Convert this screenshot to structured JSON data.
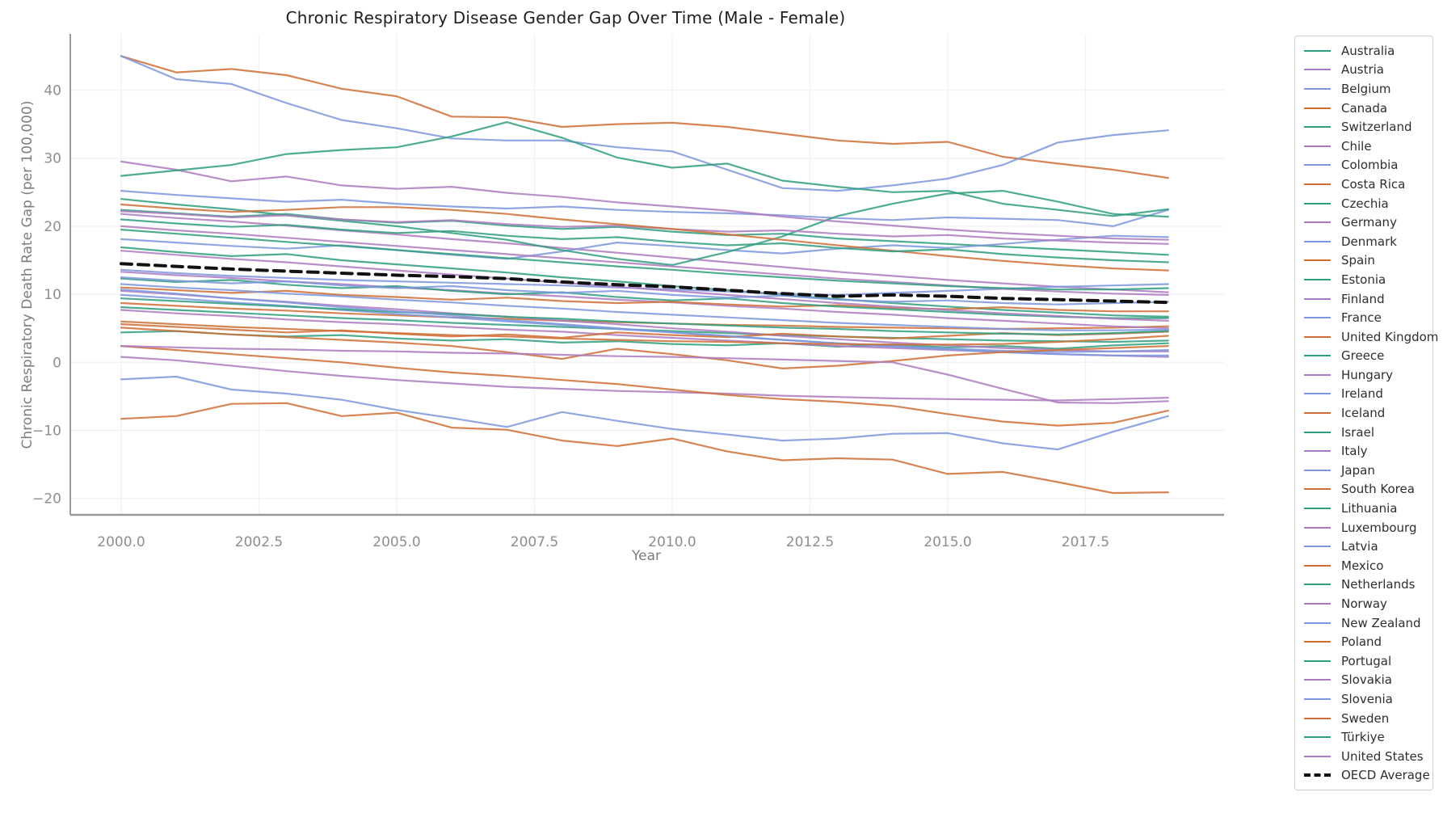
{
  "title": "Chronic Respiratory Disease Gender Gap Over Time (Male - Female)",
  "chart_data": {
    "type": "line",
    "title": "Chronic Respiratory Disease Gender Gap Over Time (Male - Female)",
    "xlabel": "Year",
    "ylabel": "Chronic Respiratory Death Rate Gap (per 100,000)",
    "x": [
      2000,
      2001,
      2002,
      2003,
      2004,
      2005,
      2006,
      2007,
      2008,
      2009,
      2010,
      2011,
      2012,
      2013,
      2014,
      2015,
      2016,
      2017,
      2018,
      2019
    ],
    "x_tick_labels": [
      "2000.0",
      "2002.5",
      "2005.0",
      "2007.5",
      "2010.0",
      "2012.5",
      "2015.0",
      "2017.5"
    ],
    "x_tick_years": [
      2000,
      2002.5,
      2005,
      2007.5,
      2010,
      2012.5,
      2015,
      2017.5
    ],
    "y_ticks": [
      -20,
      -10,
      0,
      10,
      20,
      30,
      40
    ],
    "ylim": [
      -22.4,
      48.2
    ],
    "grid": true,
    "legend_position": "right-outside",
    "palette": {
      "teal": "#2f9d7f",
      "purple": "#ad7ac0",
      "blue": "#7b97dd",
      "orange": "#cf6e35",
      "black": "#111111"
    },
    "series": [
      {
        "name": "Australia",
        "color": "teal",
        "values": [
          4.4,
          4.6,
          4.1,
          3.8,
          4.0,
          3.5,
          3.2,
          3.4,
          2.9,
          3.1,
          2.7,
          2.5,
          2.8,
          2.3,
          2.6,
          2.2,
          2.4,
          2.0,
          2.5,
          2.8
        ]
      },
      {
        "name": "Austria",
        "color": "purple",
        "values": [
          7.7,
          7.2,
          6.8,
          6.3,
          5.9,
          5.6,
          5.2,
          4.8,
          4.5,
          4.0,
          3.6,
          3.2,
          2.8,
          2.4,
          2.1,
          1.8,
          1.5,
          1.2,
          1.0,
          0.8
        ]
      },
      {
        "name": "Belgium",
        "color": "blue",
        "values": [
          25.2,
          24.6,
          24.1,
          23.6,
          23.9,
          23.3,
          22.9,
          22.6,
          22.9,
          22.4,
          22.1,
          21.9,
          21.6,
          21.2,
          20.9,
          21.3,
          21.1,
          20.9,
          20.0,
          22.4
        ]
      },
      {
        "name": "Canada",
        "color": "orange",
        "values": [
          8.7,
          8.3,
          7.9,
          7.6,
          7.2,
          6.9,
          6.6,
          6.4,
          6.1,
          5.9,
          5.7,
          5.5,
          5.4,
          5.2,
          5.1,
          5.0,
          4.9,
          5.0,
          5.1,
          5.3
        ]
      },
      {
        "name": "Switzerland",
        "color": "teal",
        "values": [
          8.1,
          7.7,
          7.3,
          6.9,
          6.5,
          6.2,
          5.8,
          5.5,
          5.2,
          4.9,
          4.6,
          4.3,
          4.0,
          3.8,
          3.6,
          3.4,
          3.2,
          3.1,
          3.0,
          3.2
        ]
      },
      {
        "name": "Chile",
        "color": "purple",
        "values": [
          10.5,
          10.0,
          9.4,
          8.9,
          8.3,
          7.8,
          7.2,
          6.7,
          6.1,
          5.6,
          5.0,
          4.5,
          3.9,
          3.4,
          2.9,
          2.5,
          2.1,
          1.8,
          1.6,
          1.6
        ]
      },
      {
        "name": "Colombia",
        "color": "blue",
        "values": [
          9.9,
          9.4,
          8.8,
          8.3,
          7.7,
          7.1,
          6.6,
          6.0,
          5.5,
          4.9,
          4.4,
          3.8,
          3.3,
          2.8,
          2.3,
          1.9,
          1.5,
          1.2,
          1.0,
          1.0
        ]
      },
      {
        "name": "Costa Rica",
        "color": "orange",
        "values": [
          5.6,
          5.2,
          4.8,
          4.4,
          4.7,
          4.2,
          3.8,
          4.1,
          3.6,
          4.4,
          4.0,
          3.7,
          4.2,
          3.8,
          3.5,
          3.9,
          4.3,
          4.0,
          4.2,
          4.5
        ]
      },
      {
        "name": "Czechia",
        "color": "teal",
        "values": [
          22.4,
          21.9,
          21.4,
          21.8,
          21.0,
          20.5,
          20.8,
          20.1,
          19.6,
          19.9,
          19.2,
          18.7,
          18.9,
          18.2,
          17.8,
          17.4,
          17.0,
          16.6,
          16.2,
          15.8
        ]
      },
      {
        "name": "Germany",
        "color": "purple",
        "values": [
          21.8,
          21.2,
          20.7,
          20.1,
          19.4,
          18.8,
          18.1,
          17.5,
          16.8,
          16.1,
          15.4,
          14.7,
          14.0,
          13.3,
          12.7,
          12.1,
          11.6,
          11.1,
          10.7,
          10.3
        ]
      },
      {
        "name": "Denmark",
        "color": "blue",
        "values": [
          -2.5,
          -2.1,
          -4.0,
          -4.6,
          -5.5,
          -7.0,
          -8.2,
          -9.5,
          -7.3,
          -8.6,
          -9.8,
          -10.6,
          -11.5,
          -11.2,
          -10.5,
          -10.4,
          -11.9,
          -12.8,
          -10.2,
          -7.9
        ]
      },
      {
        "name": "Spain",
        "color": "orange",
        "values": [
          45.0,
          42.6,
          43.1,
          42.2,
          40.2,
          39.1,
          36.1,
          36.0,
          34.6,
          35.0,
          35.2,
          34.6,
          33.6,
          32.6,
          32.1,
          32.4,
          30.2,
          29.2,
          28.3,
          27.1
        ]
      },
      {
        "name": "Estonia",
        "color": "teal",
        "values": [
          16.9,
          16.2,
          15.6,
          15.9,
          15.0,
          14.4,
          13.8,
          13.2,
          12.5,
          11.9,
          11.2,
          10.6,
          9.9,
          9.3,
          8.7,
          8.2,
          7.7,
          7.3,
          6.9,
          6.7
        ]
      },
      {
        "name": "Finland",
        "color": "purple",
        "values": [
          13.3,
          12.8,
          12.4,
          11.9,
          11.5,
          11.0,
          10.6,
          10.1,
          9.7,
          9.2,
          8.8,
          8.3,
          7.9,
          7.4,
          7.0,
          6.5,
          6.1,
          5.7,
          5.3,
          5.0
        ]
      },
      {
        "name": "France",
        "color": "blue",
        "values": [
          18.1,
          17.6,
          17.1,
          16.7,
          17.2,
          16.5,
          15.8,
          15.2,
          16.3,
          17.6,
          17.1,
          16.5,
          16.0,
          16.7,
          17.2,
          16.8,
          17.4,
          18.0,
          18.6,
          18.4
        ]
      },
      {
        "name": "United Kingdom",
        "color": "orange",
        "values": [
          11.0,
          10.6,
          10.2,
          10.5,
          9.9,
          9.6,
          9.2,
          9.5,
          9.0,
          8.7,
          8.9,
          8.5,
          8.2,
          8.4,
          8.0,
          7.8,
          8.1,
          7.7,
          7.5,
          7.5
        ]
      },
      {
        "name": "Greece",
        "color": "teal",
        "values": [
          24.0,
          23.2,
          22.5,
          21.6,
          20.8,
          20.0,
          19.0,
          18.0,
          16.5,
          15.2,
          14.3,
          16.2,
          18.5,
          21.5,
          23.3,
          24.8,
          25.2,
          23.6,
          21.8,
          21.4
        ]
      },
      {
        "name": "Hungary",
        "color": "purple",
        "values": [
          29.5,
          28.3,
          26.6,
          27.3,
          26.0,
          25.5,
          25.8,
          24.9,
          24.3,
          23.5,
          22.9,
          22.3,
          21.4,
          20.7,
          20.1,
          19.5,
          19.0,
          18.6,
          18.2,
          18.0
        ]
      },
      {
        "name": "Ireland",
        "color": "blue",
        "values": [
          13.6,
          13.1,
          12.7,
          12.4,
          12.1,
          11.9,
          11.7,
          11.5,
          11.3,
          11.0,
          10.7,
          10.4,
          10.1,
          9.9,
          10.2,
          10.5,
          10.8,
          11.1,
          11.3,
          11.5
        ]
      },
      {
        "name": "Iceland",
        "color": "orange",
        "values": [
          -8.3,
          -7.9,
          -6.1,
          -6.0,
          -7.9,
          -7.4,
          -9.6,
          -9.9,
          -11.5,
          -12.3,
          -11.2,
          -13.1,
          -14.4,
          -14.1,
          -14.3,
          -16.4,
          -16.1,
          -17.6,
          -19.2,
          -19.1
        ]
      },
      {
        "name": "Israel",
        "color": "teal",
        "values": [
          9.4,
          9.0,
          8.6,
          8.2,
          7.8,
          7.4,
          7.1,
          6.7,
          6.4,
          6.0,
          5.7,
          5.4,
          5.1,
          4.9,
          4.6,
          4.4,
          4.2,
          4.1,
          4.3,
          4.6
        ]
      },
      {
        "name": "Italy",
        "color": "purple",
        "values": [
          22.2,
          21.8,
          21.3,
          21.6,
          21.0,
          20.6,
          20.9,
          20.3,
          19.9,
          20.1,
          19.6,
          19.2,
          19.4,
          18.9,
          18.5,
          18.7,
          18.2,
          17.9,
          17.6,
          17.4
        ]
      },
      {
        "name": "Japan",
        "color": "blue",
        "values": [
          45.0,
          41.6,
          40.9,
          38.1,
          35.6,
          34.4,
          32.9,
          32.6,
          32.6,
          31.6,
          31.0,
          28.3,
          25.6,
          25.2,
          26.0,
          27.0,
          29.0,
          32.3,
          33.4,
          34.1
        ]
      },
      {
        "name": "South Korea",
        "color": "orange",
        "values": [
          23.2,
          22.6,
          22.1,
          22.4,
          22.8,
          22.8,
          22.4,
          21.8,
          21.0,
          20.3,
          19.6,
          18.8,
          18.0,
          17.2,
          16.4,
          15.6,
          14.9,
          14.3,
          13.8,
          13.5
        ]
      },
      {
        "name": "Lithuania",
        "color": "teal",
        "values": [
          12.3,
          11.8,
          12.1,
          11.4,
          10.9,
          11.2,
          10.5,
          10.0,
          10.3,
          9.6,
          9.1,
          9.4,
          8.7,
          8.2,
          7.8,
          7.4,
          7.0,
          6.7,
          6.5,
          6.5
        ]
      },
      {
        "name": "Luxembourg",
        "color": "purple",
        "values": [
          20.0,
          19.4,
          18.9,
          18.3,
          17.7,
          17.1,
          16.5,
          15.9,
          15.3,
          14.7,
          14.1,
          13.5,
          12.9,
          12.3,
          11.8,
          11.3,
          10.8,
          10.4,
          10.1,
          9.9
        ]
      },
      {
        "name": "Latvia",
        "color": "blue",
        "values": [
          10.7,
          10.1,
          9.4,
          8.8,
          8.1,
          7.5,
          6.9,
          6.2,
          5.6,
          5.0,
          4.4,
          3.9,
          3.3,
          2.8,
          2.4,
          2.0,
          1.7,
          1.5,
          1.6,
          1.8
        ]
      },
      {
        "name": "Mexico",
        "color": "orange",
        "values": [
          6.0,
          5.6,
          5.2,
          4.9,
          4.6,
          4.3,
          4.0,
          3.8,
          3.5,
          3.3,
          3.1,
          3.0,
          2.8,
          2.7,
          2.6,
          2.6,
          2.7,
          3.0,
          3.4,
          3.9
        ]
      },
      {
        "name": "Netherlands",
        "color": "teal",
        "values": [
          19.5,
          18.9,
          18.3,
          17.7,
          17.1,
          16.5,
          15.9,
          15.3,
          14.7,
          14.1,
          13.6,
          13.0,
          12.5,
          12.0,
          11.6,
          11.2,
          10.9,
          10.7,
          10.7,
          10.9
        ]
      },
      {
        "name": "Norway",
        "color": "purple",
        "values": [
          0.8,
          0.3,
          -0.5,
          -1.3,
          -2.0,
          -2.6,
          -3.1,
          -3.6,
          -3.9,
          -4.2,
          -4.4,
          -4.6,
          -4.9,
          -5.1,
          -5.3,
          -5.4,
          -5.5,
          -5.6,
          -5.4,
          -5.2
        ]
      },
      {
        "name": "New Zealand",
        "color": "blue",
        "values": [
          11.5,
          11.0,
          10.6,
          10.1,
          9.7,
          9.2,
          8.8,
          8.3,
          7.9,
          7.4,
          7.0,
          6.6,
          6.2,
          5.8,
          5.5,
          5.2,
          4.9,
          4.7,
          4.7,
          4.8
        ]
      },
      {
        "name": "Poland",
        "color": "orange",
        "values": [
          5.1,
          4.6,
          4.1,
          3.7,
          3.3,
          2.9,
          2.4,
          1.5,
          0.5,
          2.0,
          1.2,
          0.3,
          -0.9,
          -0.5,
          0.2,
          1.0,
          1.5,
          1.8,
          2.1,
          2.4
        ]
      },
      {
        "name": "Portugal",
        "color": "teal",
        "values": [
          27.4,
          28.2,
          29.0,
          30.6,
          31.2,
          31.6,
          33.2,
          35.3,
          33.0,
          30.1,
          28.6,
          29.2,
          26.7,
          25.8,
          25.0,
          25.2,
          23.3,
          22.4,
          21.5,
          22.5
        ]
      },
      {
        "name": "Slovakia",
        "color": "purple",
        "values": [
          16.4,
          15.8,
          15.2,
          14.7,
          14.1,
          13.5,
          12.9,
          12.3,
          11.7,
          11.1,
          10.5,
          9.9,
          9.3,
          8.7,
          8.2,
          7.7,
          7.2,
          6.8,
          6.4,
          6.1
        ]
      },
      {
        "name": "Slovenia",
        "color": "blue",
        "values": [
          12.5,
          12.0,
          11.6,
          11.9,
          11.3,
          10.9,
          11.2,
          10.6,
          10.2,
          10.5,
          9.9,
          9.5,
          9.8,
          9.2,
          8.9,
          9.1,
          8.7,
          8.5,
          8.7,
          8.9
        ]
      },
      {
        "name": "Sweden",
        "color": "orange",
        "values": [
          2.4,
          1.8,
          1.2,
          0.6,
          0.0,
          -0.8,
          -1.5,
          -2.0,
          -2.6,
          -3.2,
          -4.0,
          -4.8,
          -5.4,
          -5.8,
          -6.4,
          -7.6,
          -8.7,
          -9.3,
          -8.9,
          -7.1
        ]
      },
      {
        "name": "Türkiye",
        "color": "teal",
        "values": [
          21.0,
          20.4,
          19.9,
          20.2,
          19.5,
          19.0,
          19.3,
          18.6,
          18.1,
          18.4,
          17.7,
          17.2,
          17.5,
          16.8,
          16.3,
          16.6,
          15.9,
          15.4,
          15.0,
          14.7
        ]
      },
      {
        "name": "United States",
        "color": "purple",
        "values": [
          2.4,
          2.2,
          2.0,
          1.9,
          1.7,
          1.6,
          1.4,
          1.3,
          1.1,
          0.9,
          0.8,
          0.6,
          0.4,
          0.2,
          0.0,
          -1.8,
          -3.9,
          -5.9,
          -6.0,
          -5.7
        ]
      },
      {
        "name": "OECD Average",
        "color": "black",
        "dashed": true,
        "values": [
          14.5,
          14.1,
          13.7,
          13.4,
          13.1,
          12.8,
          12.6,
          12.3,
          11.8,
          11.4,
          11.1,
          10.6,
          10.1,
          9.7,
          9.9,
          9.7,
          9.4,
          9.2,
          9.0,
          8.8
        ]
      }
    ]
  }
}
